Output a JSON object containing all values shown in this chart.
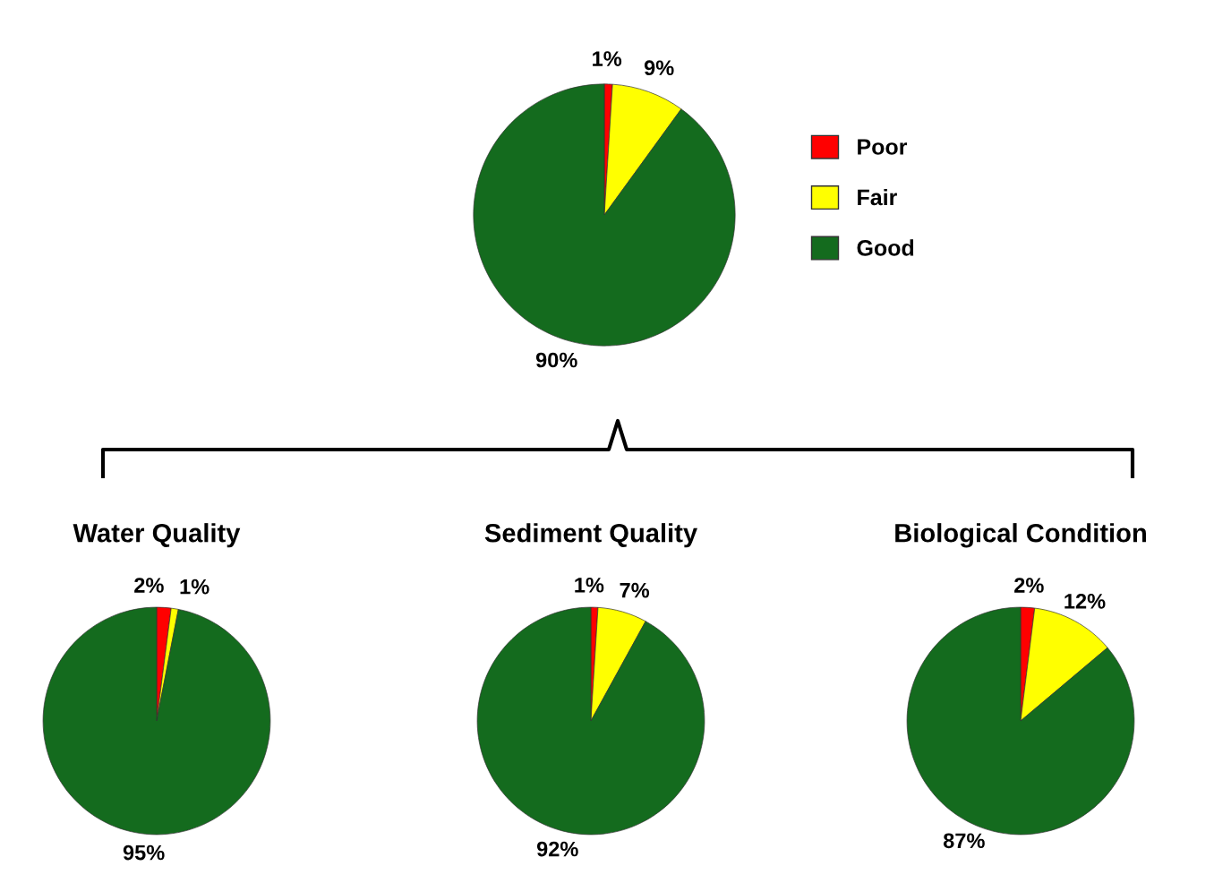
{
  "chart_data": [
    {
      "type": "pie",
      "categories": [
        "Poor",
        "Fair",
        "Good"
      ],
      "values": [
        1,
        9,
        90
      ],
      "value_labels": [
        "1%",
        "9%",
        "90%"
      ],
      "colors": [
        "#ff0000",
        "#ffff00",
        "#146b1e"
      ],
      "legend": "right"
    },
    {
      "type": "pie",
      "title": "Water Quality",
      "categories": [
        null,
        null,
        null
      ],
      "values": [
        2,
        1,
        95
      ],
      "value_labels": [
        "2%",
        "1%",
        "95%"
      ],
      "colors": [
        "#ff0000",
        "#ffff00",
        "#146b1e"
      ]
    },
    {
      "type": "pie",
      "title": "Sediment Quality",
      "categories": [
        null,
        null,
        null
      ],
      "values": [
        1,
        7,
        92
      ],
      "value_labels": [
        "1%",
        "7%",
        "92%"
      ],
      "colors": [
        "#ff0000",
        "#ffff00",
        "#146b1e"
      ]
    },
    {
      "type": "pie",
      "title": "Biological Condition",
      "categories": [
        null,
        null,
        null
      ],
      "values": [
        2,
        12,
        87
      ],
      "value_labels": [
        "2%",
        "12%",
        "87%"
      ],
      "colors": [
        "#ff0000",
        "#ffff00",
        "#146b1e"
      ]
    }
  ]
}
